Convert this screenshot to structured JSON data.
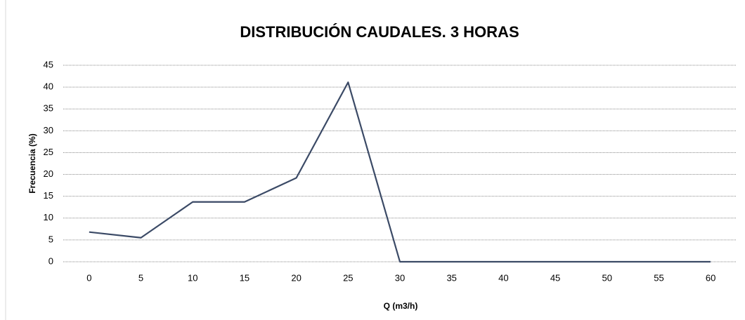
{
  "chart_data": {
    "type": "line",
    "title": "DISTRIBUCIÓN CAUDALES. 3 HORAS",
    "x_label": "Q (m3/h)",
    "y_label": "Frecuencia (%)",
    "categories": [
      "0",
      "5",
      "10",
      "15",
      "20",
      "25",
      "30",
      "35",
      "40",
      "45",
      "50",
      "55",
      "60"
    ],
    "series": [
      {
        "name": "Frecuencia",
        "color": "#3b4a66",
        "values": [
          6.8,
          5.5,
          13.7,
          13.7,
          19.2,
          41.1,
          0,
          0,
          0,
          0,
          0,
          0,
          0
        ]
      }
    ],
    "ylim": [
      0,
      45
    ],
    "yticks": [
      0,
      5,
      10,
      15,
      20,
      25,
      30,
      35,
      40,
      45
    ],
    "grid": true
  }
}
